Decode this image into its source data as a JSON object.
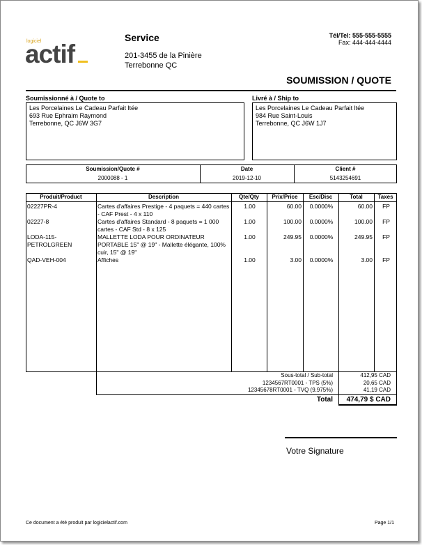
{
  "logo": {
    "small": "logiciel",
    "big": "actif",
    "accent": "#f0c020"
  },
  "company": {
    "name": "Service",
    "address1": "201-3455 de la Pinière",
    "address2": "Terrebonne QC",
    "phone": "Tél/Tel: 555-555-5555",
    "fax": "Fax: 444-444-4444"
  },
  "doc_title": "SOUMISSION / QUOTE",
  "quote_to": {
    "label": "Soumissionné à / Quote to",
    "lines": [
      "Les Porcelaines Le Cadeau Parfait ltée",
      "693 Rue Ephraim Raymond",
      "Terrebonne, QC J6W 3G7"
    ]
  },
  "ship_to": {
    "label": "Livré à / Ship to",
    "lines": [
      "Les Porcelaines Le Cadeau Parfait ltée",
      "984 Rue Saint-Louis",
      "Terrebonne, QC J6W 1J7"
    ]
  },
  "info": {
    "headers": [
      "Soumission/Quote #",
      "Date",
      "Client #"
    ],
    "values": [
      "2000088 - 1",
      "2019-12-10",
      "5143254691"
    ]
  },
  "items": {
    "headers": [
      "Produit/Product",
      "Description",
      "Qte/Qty",
      "Prix/Price",
      "Esc/Disc",
      "Total",
      "Taxes"
    ],
    "rows": [
      {
        "product": "02227PR-4",
        "description": "Cartes d'affaires Prestige - 4 paquets = 440 cartes - CAF Prest - 4 x 110",
        "qty": "1.00",
        "price": "60.00",
        "disc": "0.0000%",
        "total": "60.00",
        "taxes": "FP"
      },
      {
        "product": "02227-8",
        "description": "Cartes d'affaires Standard - 8 paquets = 1 000 cartes - CAF Std - 8 x 125",
        "qty": "1.00",
        "price": "100.00",
        "disc": "0.0000%",
        "total": "100.00",
        "taxes": "FP"
      },
      {
        "product": "LODA-115-PETROLGREEN",
        "description": "MALLETTE LODA POUR ORDINATEUR PORTABLE 15\" @ 19\" - Mallette élégante, 100% cuir, 15\" @ 19\"",
        "qty": "1.00",
        "price": "249.95",
        "disc": "0.0000%",
        "total": "249.95",
        "taxes": "FP"
      },
      {
        "product": "QAD-VEH-004",
        "description": "Affiches",
        "qty": "1.00",
        "price": "3.00",
        "disc": "0.0000%",
        "total": "3.00",
        "taxes": "FP"
      }
    ]
  },
  "totals": {
    "rows": [
      {
        "label": "Sous-total / Sub-total",
        "value": "412,95 CAD"
      },
      {
        "label": "1234567RT0001 - TPS (5%)",
        "value": "20,65 CAD"
      },
      {
        "label": "12345678RT0001 - TVQ (9.975%)",
        "value": "41,19 CAD"
      }
    ],
    "total_label": "Total",
    "total_value": "474,79 $ CAD"
  },
  "signature": "Votre Signature",
  "footer": {
    "left": "Ce document a été produit par logicielactif.com",
    "right": "Page 1/1"
  }
}
